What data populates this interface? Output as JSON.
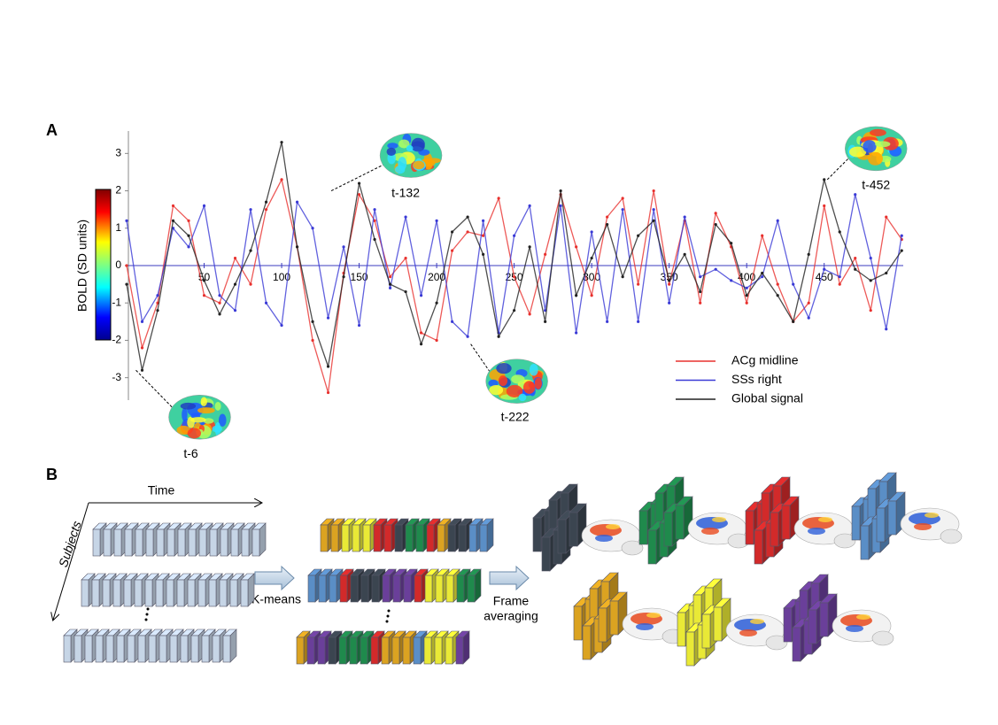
{
  "panel_a_label": "A",
  "panel_b_label": "B",
  "chart_data": {
    "type": "line",
    "y_label": "BOLD (SD units)",
    "x": [
      0,
      10,
      20,
      30,
      40,
      50,
      60,
      70,
      80,
      90,
      100,
      110,
      120,
      130,
      140,
      150,
      160,
      170,
      180,
      190,
      200,
      210,
      220,
      230,
      240,
      250,
      260,
      270,
      280,
      290,
      300,
      310,
      320,
      330,
      340,
      350,
      360,
      370,
      380,
      390,
      400,
      410,
      420,
      430,
      440,
      450,
      460,
      470,
      480,
      490,
      500
    ],
    "series": [
      {
        "name": "ACg midline",
        "color": "#e8312e",
        "values": [
          0,
          -2.2,
          -1,
          1.6,
          1.2,
          -0.8,
          -1,
          0.2,
          -0.5,
          1.5,
          2.3,
          0.5,
          -2,
          -3.4,
          -0.2,
          1.9,
          1.2,
          -0.3,
          0.2,
          -1.8,
          -2,
          0.4,
          0.9,
          0.8,
          1.8,
          -0.3,
          -1.3,
          0.3,
          1.9,
          0.5,
          -0.8,
          1.3,
          1.8,
          -0.5,
          2,
          -0.5,
          1.2,
          -1,
          1.4,
          0.5,
          -1,
          0.8,
          -0.5,
          -1.5,
          -1,
          1.6,
          -0.5,
          0.2,
          -1.2,
          1.3,
          0.7
        ]
      },
      {
        "name": "SSs right",
        "color": "#3a3ad6",
        "values": [
          1.2,
          -1.5,
          -0.8,
          1,
          0.5,
          1.6,
          -0.8,
          -1.2,
          1.5,
          -1,
          -1.6,
          1.7,
          1,
          -1.4,
          0.5,
          -1.6,
          1.5,
          -0.6,
          1.3,
          -0.8,
          1.2,
          -1.5,
          -1.9,
          1.2,
          -1.8,
          0.8,
          1.6,
          -1.2,
          1.6,
          -1.8,
          0.9,
          -1.5,
          1.5,
          -1.5,
          1.5,
          -1,
          1.3,
          -0.3,
          -0.1,
          -0.4,
          -0.6,
          -0.3,
          1.2,
          -0.5,
          -1.4,
          -0.1,
          -0.3,
          1.9,
          0.2,
          -1.7,
          0.8
        ]
      },
      {
        "name": "Global signal",
        "color": "#222222",
        "values": [
          -0.5,
          -2.8,
          -1.2,
          1.2,
          0.8,
          -0.4,
          -1.3,
          -0.5,
          0.4,
          1.7,
          3.3,
          0.5,
          -1.5,
          -2.7,
          -0.3,
          2.2,
          0.7,
          -0.5,
          -0.7,
          -2.1,
          -1,
          0.9,
          1.3,
          0.3,
          -1.9,
          -1.2,
          0.5,
          -1.5,
          2,
          -0.8,
          0.2,
          1.1,
          -0.3,
          0.8,
          1.2,
          -0.4,
          0.3,
          -0.7,
          1.1,
          0.6,
          -0.8,
          -0.2,
          -0.8,
          -1.5,
          0.3,
          2.3,
          0.9,
          -0.1,
          -0.4,
          -0.2,
          0.4
        ]
      }
    ],
    "xlim": [
      0,
      505
    ],
    "ylim": [
      -3.6,
      3.6
    ],
    "xticks": [
      50,
      100,
      150,
      200,
      250,
      300,
      350,
      400,
      450
    ],
    "yticks": [
      -3,
      -2,
      -1,
      0,
      1,
      2,
      3
    ],
    "annotations": [
      {
        "text": "t-6",
        "x": 6,
        "y": -2.8
      },
      {
        "text": "t-132",
        "x": 132,
        "y": 2
      },
      {
        "text": "t-222",
        "x": 222,
        "y": -2.1
      },
      {
        "text": "t-452",
        "x": 452,
        "y": 2.3
      }
    ]
  },
  "panel_b": {
    "time_label": "Time",
    "subjects_label": "Subjects",
    "kmeans_label": "K-means",
    "averaging_label": [
      "Frame",
      "averaging"
    ]
  }
}
